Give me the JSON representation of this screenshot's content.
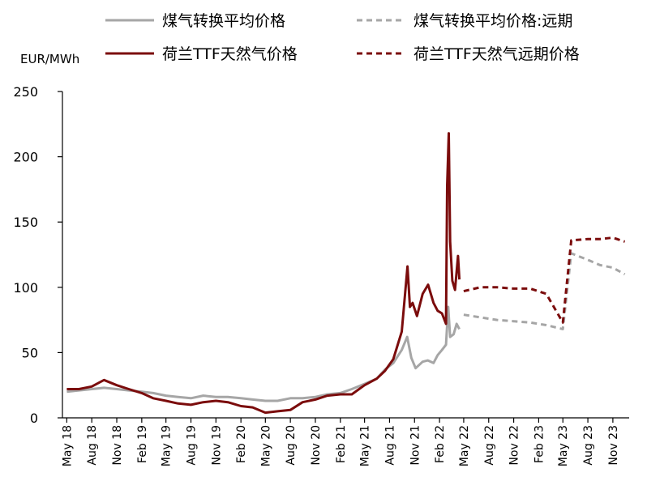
{
  "chart_data": {
    "type": "line",
    "ylabel": "EUR/MWh",
    "ylim": [
      0,
      250
    ],
    "yticks": [
      0,
      50,
      100,
      150,
      200,
      250
    ],
    "grid": false,
    "legend_position": "top",
    "x_tick_labels": [
      "May 18",
      "Aug 18",
      "Nov 18",
      "Feb 19",
      "May 19",
      "Aug 19",
      "Nov 19",
      "Feb 20",
      "May 20",
      "Aug 20",
      "Nov 20",
      "Feb 21",
      "May 21",
      "Aug 21",
      "Nov 21",
      "Feb 22",
      "May 22",
      "Aug 22",
      "Nov 22",
      "Feb 23",
      "May 23",
      "Aug 23",
      "Nov 23"
    ],
    "x_tick_dates": [
      "2018-05",
      "2018-08",
      "2018-11",
      "2019-02",
      "2019-05",
      "2019-08",
      "2019-11",
      "2020-02",
      "2020-05",
      "2020-08",
      "2020-11",
      "2021-02",
      "2021-05",
      "2021-08",
      "2021-11",
      "2022-02",
      "2022-05",
      "2022-08",
      "2022-11",
      "2023-02",
      "2023-05",
      "2023-08",
      "2023-11"
    ],
    "series": [
      {
        "name": "煤气转换平均价格",
        "color": "#a6a6a6",
        "style": "solid",
        "points": [
          [
            "2018-05-01",
            20
          ],
          [
            "2018-06-15",
            21
          ],
          [
            "2018-08-01",
            22
          ],
          [
            "2018-09-15",
            23
          ],
          [
            "2018-11-01",
            22
          ],
          [
            "2018-12-15",
            21
          ],
          [
            "2019-02-01",
            20
          ],
          [
            "2019-03-15",
            19
          ],
          [
            "2019-05-01",
            17
          ],
          [
            "2019-06-15",
            16
          ],
          [
            "2019-08-01",
            15
          ],
          [
            "2019-09-15",
            17
          ],
          [
            "2019-11-01",
            16
          ],
          [
            "2019-12-15",
            16
          ],
          [
            "2020-02-01",
            15
          ],
          [
            "2020-03-15",
            14
          ],
          [
            "2020-05-01",
            13
          ],
          [
            "2020-06-15",
            13
          ],
          [
            "2020-08-01",
            15
          ],
          [
            "2020-09-15",
            15
          ],
          [
            "2020-11-01",
            16
          ],
          [
            "2020-12-15",
            18
          ],
          [
            "2021-02-01",
            19
          ],
          [
            "2021-03-15",
            22
          ],
          [
            "2021-05-01",
            26
          ],
          [
            "2021-06-15",
            30
          ],
          [
            "2021-07-15",
            37
          ],
          [
            "2021-08-15",
            42
          ],
          [
            "2021-09-15",
            52
          ],
          [
            "2021-10-05",
            62
          ],
          [
            "2021-10-20",
            46
          ],
          [
            "2021-11-05",
            38
          ],
          [
            "2021-12-01",
            43
          ],
          [
            "2021-12-20",
            44
          ],
          [
            "2022-01-10",
            42
          ],
          [
            "2022-01-25",
            48
          ],
          [
            "2022-02-10",
            52
          ],
          [
            "2022-02-25",
            56
          ],
          [
            "2022-03-05",
            85
          ],
          [
            "2022-03-12",
            62
          ],
          [
            "2022-03-25",
            64
          ],
          [
            "2022-04-05",
            72
          ],
          [
            "2022-04-15",
            68
          ]
        ]
      },
      {
        "name": "煤气转换平均价格:远期",
        "color": "#a6a6a6",
        "style": "dashed",
        "points": [
          [
            "2022-05-01",
            79
          ],
          [
            "2022-07-01",
            77
          ],
          [
            "2022-09-01",
            75
          ],
          [
            "2022-11-01",
            74
          ],
          [
            "2023-01-01",
            73
          ],
          [
            "2023-03-01",
            71
          ],
          [
            "2023-05-01",
            68
          ],
          [
            "2023-06-01",
            126
          ],
          [
            "2023-08-01",
            121
          ],
          [
            "2023-09-15",
            117
          ],
          [
            "2023-11-01",
            115
          ],
          [
            "2023-12-15",
            110
          ]
        ]
      },
      {
        "name": "荷兰TTF天然气价格",
        "color": "#7b0c0c",
        "style": "solid",
        "points": [
          [
            "2018-05-01",
            22
          ],
          [
            "2018-06-15",
            22
          ],
          [
            "2018-08-01",
            24
          ],
          [
            "2018-09-15",
            29
          ],
          [
            "2018-11-01",
            25
          ],
          [
            "2018-12-15",
            22
          ],
          [
            "2019-02-01",
            19
          ],
          [
            "2019-03-15",
            15
          ],
          [
            "2019-05-01",
            13
          ],
          [
            "2019-06-15",
            11
          ],
          [
            "2019-08-01",
            10
          ],
          [
            "2019-09-15",
            12
          ],
          [
            "2019-11-01",
            13
          ],
          [
            "2019-12-15",
            12
          ],
          [
            "2020-02-01",
            9
          ],
          [
            "2020-03-15",
            8
          ],
          [
            "2020-05-01",
            4
          ],
          [
            "2020-06-15",
            5
          ],
          [
            "2020-08-01",
            6
          ],
          [
            "2020-09-15",
            12
          ],
          [
            "2020-11-01",
            14
          ],
          [
            "2020-12-15",
            17
          ],
          [
            "2021-02-01",
            18
          ],
          [
            "2021-03-15",
            18
          ],
          [
            "2021-05-01",
            25
          ],
          [
            "2021-06-15",
            30
          ],
          [
            "2021-07-15",
            36
          ],
          [
            "2021-08-15",
            45
          ],
          [
            "2021-09-15",
            66
          ],
          [
            "2021-10-06",
            116
          ],
          [
            "2021-10-15",
            85
          ],
          [
            "2021-10-25",
            88
          ],
          [
            "2021-11-10",
            78
          ],
          [
            "2021-12-01",
            95
          ],
          [
            "2021-12-21",
            102
          ],
          [
            "2022-01-10",
            88
          ],
          [
            "2022-01-25",
            82
          ],
          [
            "2022-02-10",
            80
          ],
          [
            "2022-02-25",
            72
          ],
          [
            "2022-03-01",
            178
          ],
          [
            "2022-03-07",
            218
          ],
          [
            "2022-03-12",
            135
          ],
          [
            "2022-03-20",
            105
          ],
          [
            "2022-03-30",
            98
          ],
          [
            "2022-04-10",
            124
          ],
          [
            "2022-04-15",
            106
          ]
        ]
      },
      {
        "name": "荷兰TTF天然气远期价格",
        "color": "#7b0c0c",
        "style": "dashed",
        "points": [
          [
            "2022-05-01",
            97
          ],
          [
            "2022-07-01",
            100
          ],
          [
            "2022-09-01",
            100
          ],
          [
            "2022-11-01",
            99
          ],
          [
            "2023-01-01",
            99
          ],
          [
            "2023-03-01",
            95
          ],
          [
            "2023-05-01",
            73
          ],
          [
            "2023-06-01",
            136
          ],
          [
            "2023-08-01",
            137
          ],
          [
            "2023-09-15",
            137
          ],
          [
            "2023-11-01",
            138
          ],
          [
            "2023-12-15",
            135
          ]
        ]
      }
    ]
  }
}
